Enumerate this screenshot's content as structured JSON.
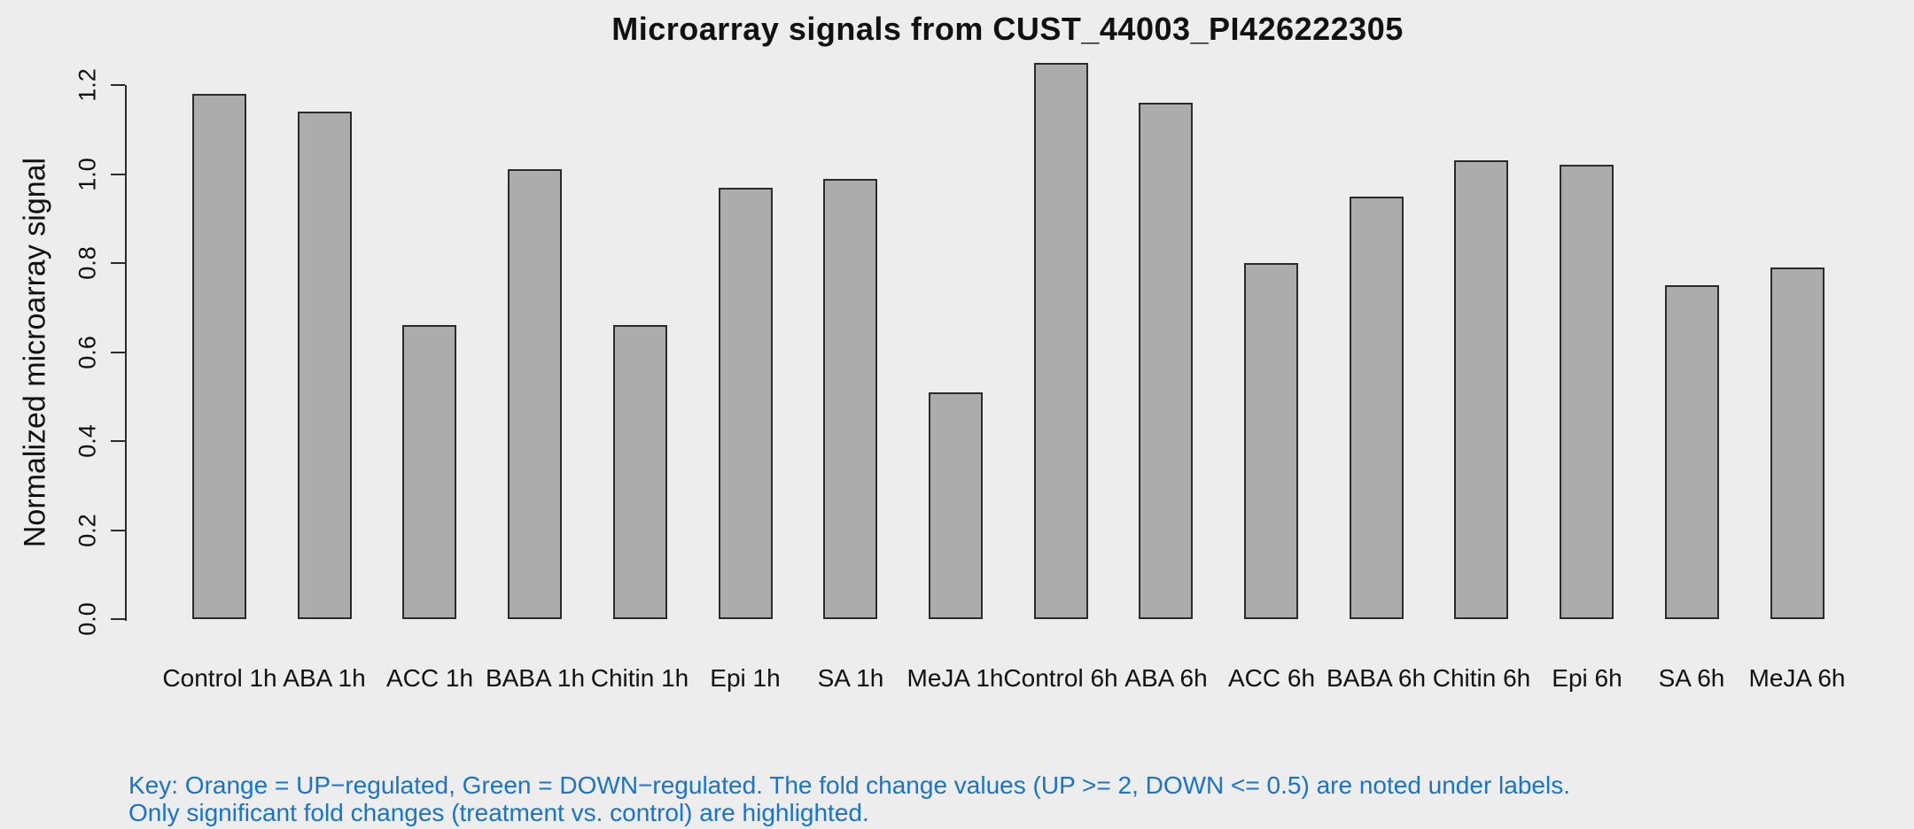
{
  "chart_data": {
    "type": "bar",
    "title": "Microarray signals from CUST_44003_PI426222305",
    "ylabel": "Normalized microarray signal",
    "xlabel": "",
    "categories": [
      "Control 1h",
      "ABA 1h",
      "ACC 1h",
      "BABA 1h",
      "Chitin 1h",
      "Epi 1h",
      "SA 1h",
      "MeJA 1h",
      "Control 6h",
      "ABA 6h",
      "ACC 6h",
      "BABA 6h",
      "Chitin 6h",
      "Epi 6h",
      "SA 6h",
      "MeJA 6h"
    ],
    "values": [
      1.18,
      1.14,
      0.66,
      1.01,
      0.66,
      0.97,
      0.99,
      0.51,
      1.25,
      1.16,
      0.8,
      0.95,
      1.03,
      1.02,
      0.75,
      0.79
    ],
    "yticks": [
      0.0,
      0.2,
      0.4,
      0.6,
      0.8,
      1.0,
      1.2
    ],
    "ytick_labels": [
      "0.0",
      "0.2",
      "0.4",
      "0.6",
      "0.8",
      "1.0",
      "1.2"
    ],
    "ylim": [
      0,
      1.27
    ],
    "grid": false,
    "legend": "none",
    "bar_fill": "#ACACAC",
    "bar_border": "#2B2B2B"
  },
  "key": {
    "line1": "Key: Orange = UP−regulated, Green = DOWN−regulated. The fold change values (UP >= 2, DOWN <= 0.5) are noted under labels.",
    "line2": "Only significant fold changes (treatment vs. control) are highlighted.",
    "color": "#1874CD"
  },
  "colors": {
    "background": "#EDEDED",
    "axis": "#2B2B2B",
    "text": "#111111"
  }
}
